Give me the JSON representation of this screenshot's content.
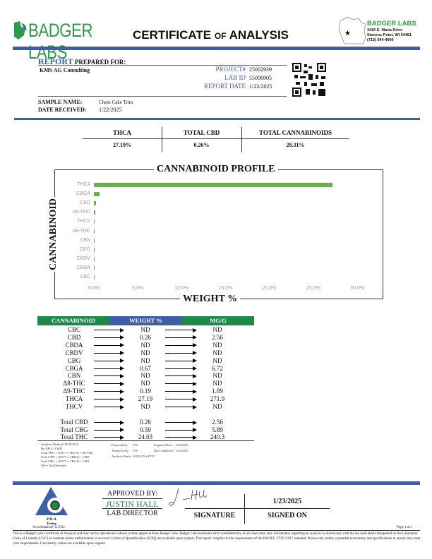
{
  "header": {
    "logo_text": "BADGER LABS",
    "title_main1": "CERTIFICATE",
    "title_of": "OF",
    "title_main2": "ANALYSIS",
    "lab_name": "BADGER LABS",
    "address1": "3426 E. Maria Drive",
    "address2": "Stevens Point, WI 54481",
    "phone": "(715) 544-4900"
  },
  "report": {
    "report_word": "REPORT",
    "prepared_for": "PREPARED FOR:",
    "client": "KMS AG Consulting",
    "project_label": "PROJECT#",
    "project": "25002939",
    "labid_label": "LAB ID",
    "labid": "55006905",
    "date_label": "REPORT DATE",
    "date": "1/23/2025",
    "sample_label": "SAMPLE NAME:",
    "sample": "Chem Cake Trim",
    "received_label": "DATE RECEIVED:",
    "received": "1/22/2025"
  },
  "summary": {
    "headers": [
      "THCA",
      "TOTAL CBD",
      "TOTAL CANNABINOIDS"
    ],
    "values": [
      "27.19%",
      "0.26%",
      "28.31%"
    ]
  },
  "chart_data": {
    "type": "bar",
    "orientation": "horizontal",
    "title": "CANNABINOID PROFILE",
    "xlabel": "WEIGHT %",
    "ylabel": "CANNABINOID",
    "categories": [
      "THCA",
      "CBGA",
      "CBD",
      "Δ9-THC",
      "THCV",
      "Δ8-THC",
      "CBN",
      "CBG",
      "CBDV",
      "CBDA",
      "CBC"
    ],
    "values": [
      27.19,
      0.67,
      0.26,
      0.19,
      0,
      0,
      0,
      0,
      0,
      0,
      0
    ],
    "xlim": [
      0,
      30
    ],
    "xticks": [
      "0.0%",
      "5.0%",
      "10.0%",
      "15.0%",
      "20.0%",
      "25.0%",
      "30.0%"
    ],
    "bar_color": "#6ab04c",
    "grid": false
  },
  "table": {
    "headers": [
      "CANNABINOID",
      "WEIGHT %",
      "MG/G"
    ],
    "rows": [
      [
        "CBC",
        "ND",
        "ND"
      ],
      [
        "CBD",
        "0.26",
        "2.56"
      ],
      [
        "CBDA",
        "ND",
        "ND"
      ],
      [
        "CBDV",
        "ND",
        "ND"
      ],
      [
        "CBG",
        "ND",
        "ND"
      ],
      [
        "CBGA",
        "0.67",
        "6.72"
      ],
      [
        "CBN",
        "ND",
        "ND"
      ],
      [
        "Δ8-THC",
        "ND",
        "ND"
      ],
      [
        "Δ9-THC",
        "0.19",
        "1.89"
      ],
      [
        "THCA",
        "27.19",
        "271.9"
      ],
      [
        "THCV",
        "ND",
        "ND"
      ]
    ],
    "totals": [
      [
        "Total CBD",
        "0.26",
        "2.56"
      ],
      [
        "Total CBG",
        "0.59",
        "5.89"
      ],
      [
        "Total THC",
        "24.03",
        "240.3"
      ]
    ],
    "header_colors": {
      "green": "#1e8a4a",
      "blue": "#3f5ea8"
    }
  },
  "notes": {
    "left": [
      "Analysis Method: TP-POT-01",
      "By HPLC-VWD",
      "Total THC = (0.877 x THCA) + Δ9-THC",
      "Total CBD = (0.877 x CBDA) + CBD",
      "Total CBG = (0.877 x CBGA) + CBG",
      "ND = Not Detected"
    ],
    "prepared_by_label": "Prepared By:",
    "prepared_by": "TJS",
    "prepared_date_label": "Prepared Date:",
    "prepared_date": "1/22/2025",
    "analyzed_by_label": "Analyzed By:",
    "analyzed_by": "TJS",
    "date_analyzed_label": "Date Analyzed:",
    "date_analyzed": "1/22/2025",
    "batch_label": "Analysis Batch:",
    "batch": "JAN2225A-POT"
  },
  "footer": {
    "pjla": "PJLA",
    "testing": "Testing",
    "accreditation": "Accreditation# 115522",
    "approved_by": "APPROVED BY:",
    "approver": "JUSTIN HALL",
    "approver_title": "LAB DIRECTOR",
    "signature_label": "SIGNATURE",
    "signed_date": "1/23/2025",
    "signed_on_label": "SIGNED ON",
    "page": "Page 1 of 1",
    "disclaimer": "This is a Badger Labs Certificate of Analysis and may not be reproduced without written approval from Badger Labs. Badger Labs maintains strict confidentiality of all client data. Any information regarding an analysis is shared only with the the individuals designated on the Laboratory Chain of Custody (COC) as contacts unless authorization is received. Limits of Quantification (LOQ) are available upon request. This report complies to the requirements of the ISO/IEC 17025:2017 standard. Review the results, expanded uncertainty and specifications to ensure they meet your requirements. Uncertainty values are available upon request."
  }
}
